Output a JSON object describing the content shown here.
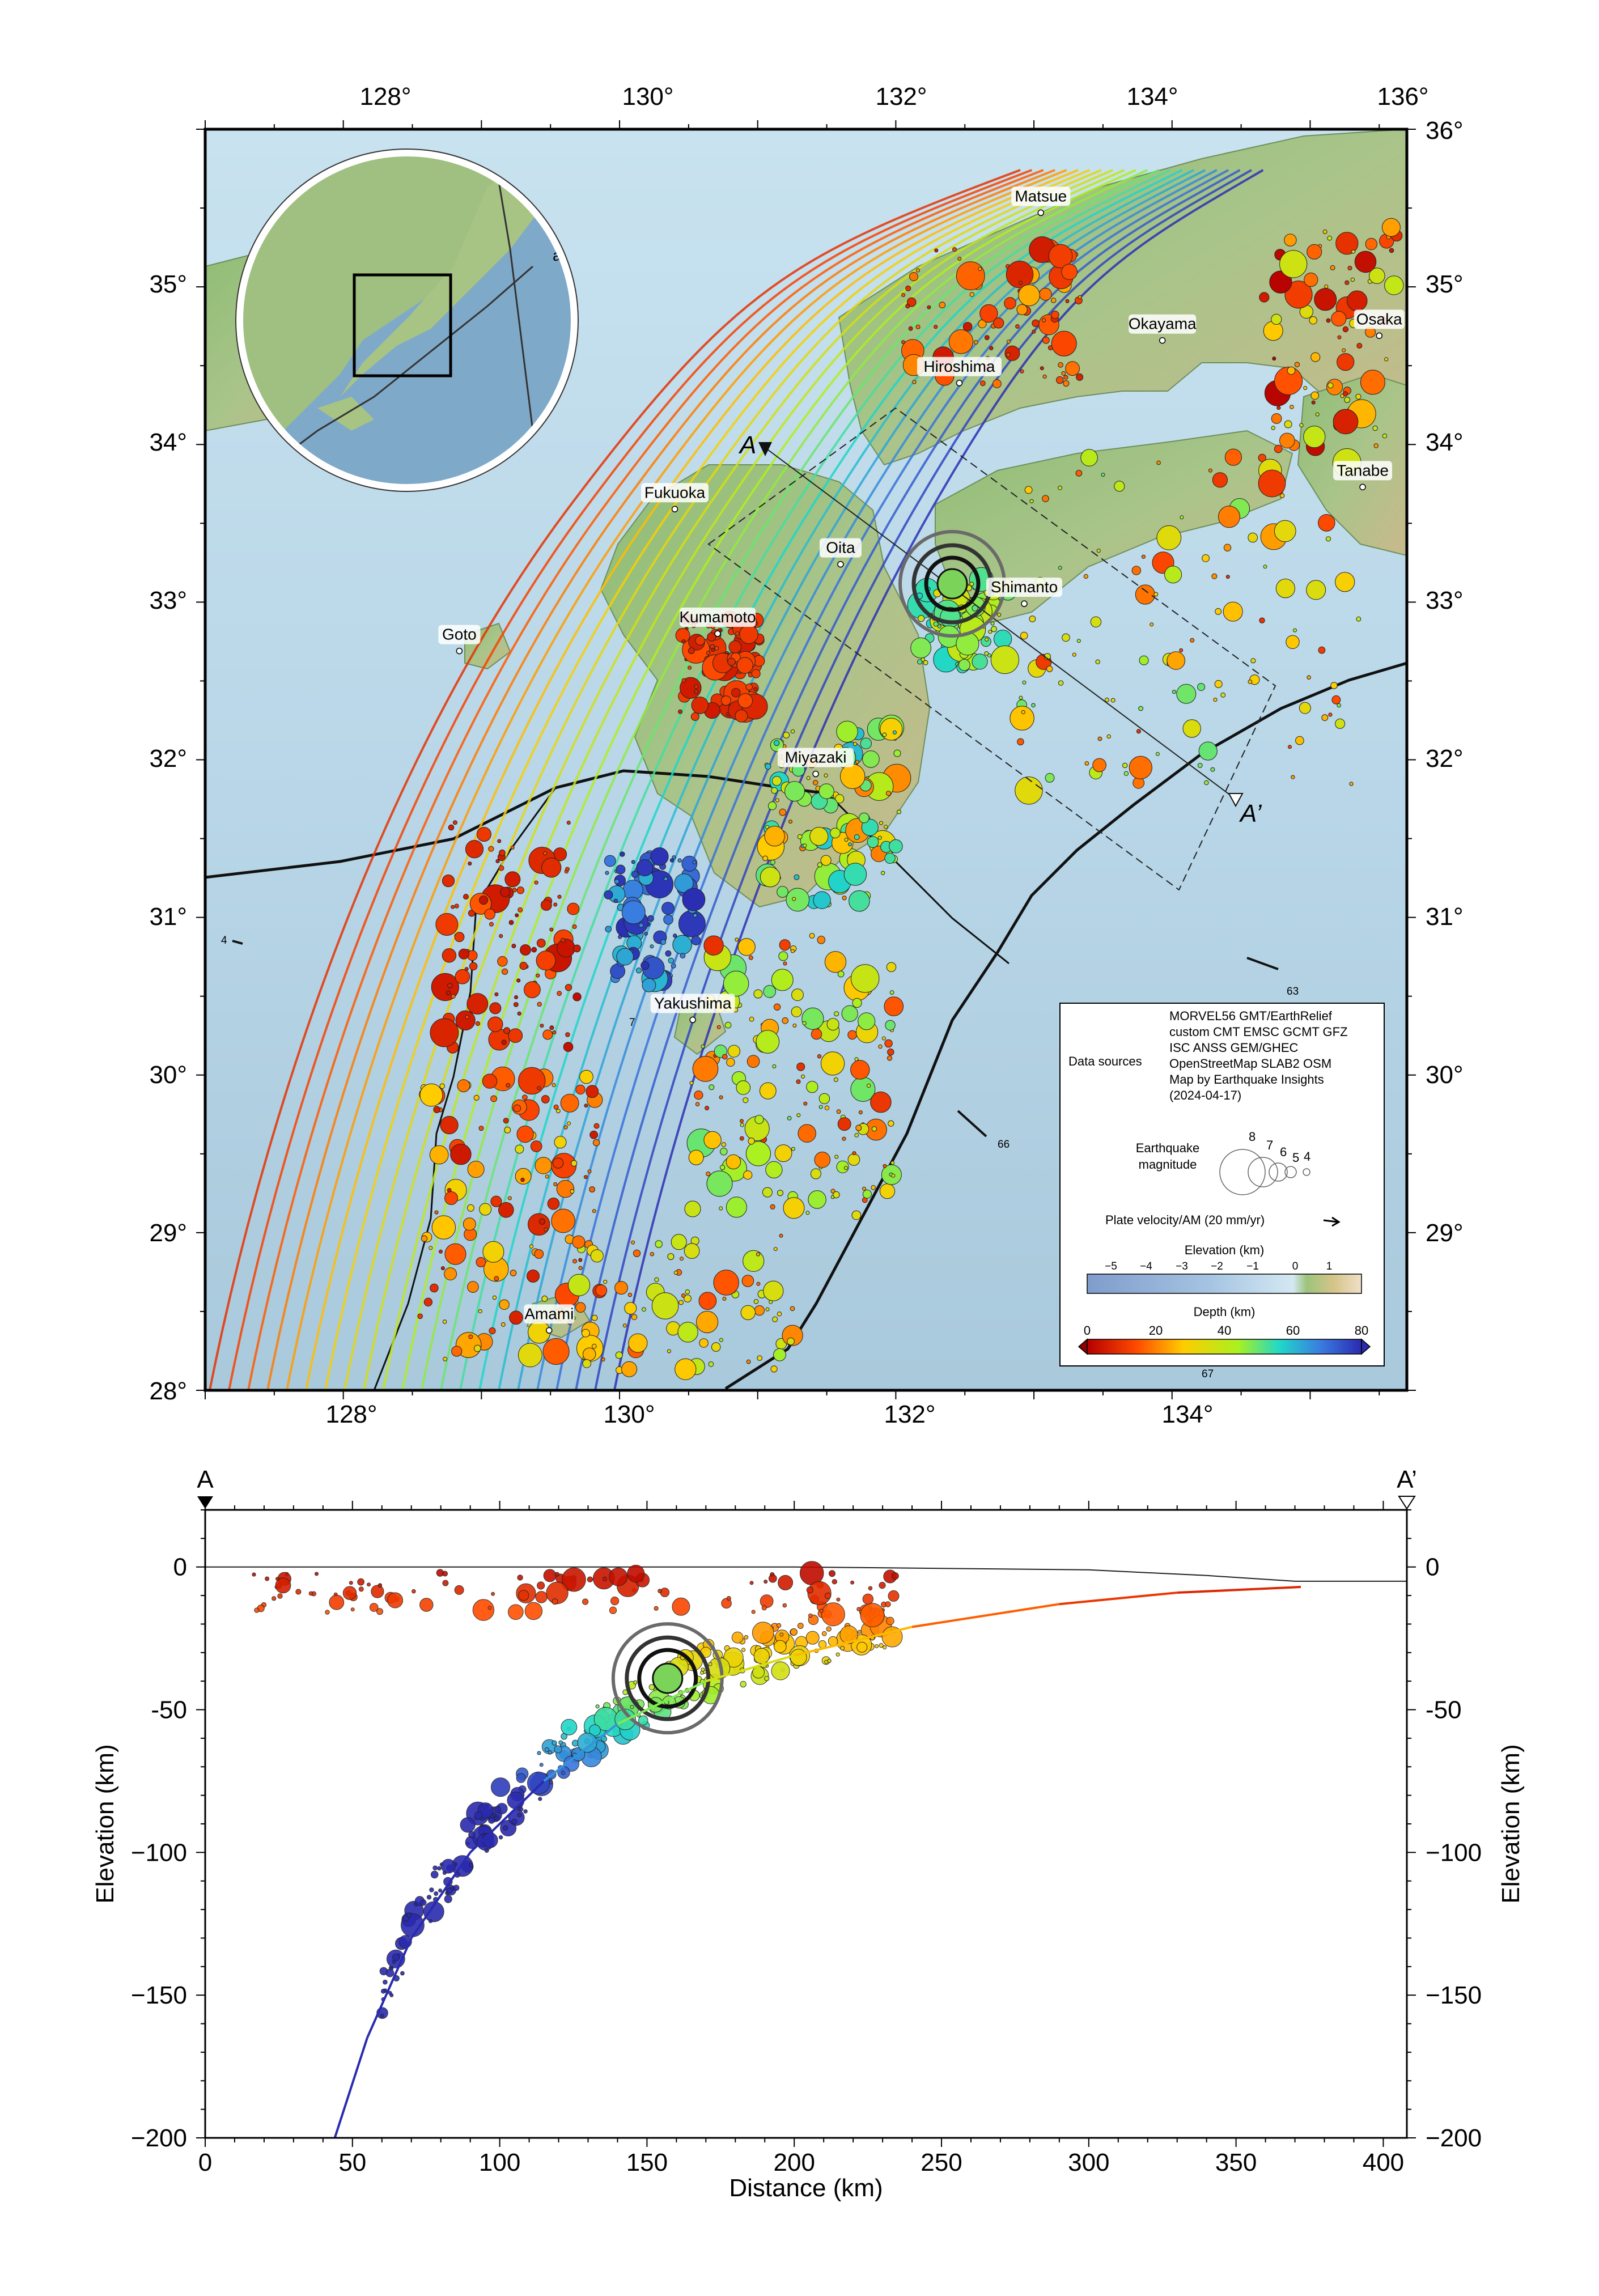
{
  "map": {
    "lon_ticks": [
      "128°",
      "130°",
      "132°",
      "134°",
      "136°"
    ],
    "lat_ticks": [
      "36°",
      "35°",
      "34°",
      "33°",
      "32°",
      "31°",
      "30°",
      "29°",
      "28°"
    ],
    "extent": {
      "lon": [
        127.0,
        135.7
      ],
      "lat": [
        28.0,
        36.0
      ]
    },
    "cities": [
      {
        "name": "Matsue",
        "lon": 133.05,
        "lat": 35.47
      },
      {
        "name": "Osaka",
        "lon": 135.5,
        "lat": 34.69
      },
      {
        "name": "Okayama",
        "lon": 133.93,
        "lat": 34.66
      },
      {
        "name": "Hiroshima",
        "lon": 132.46,
        "lat": 34.39
      },
      {
        "name": "Tanabe",
        "lon": 135.38,
        "lat": 33.73
      },
      {
        "name": "Fukuoka",
        "lon": 130.4,
        "lat": 33.59
      },
      {
        "name": "Oita",
        "lon": 131.6,
        "lat": 33.24
      },
      {
        "name": "Shimanto",
        "lon": 132.93,
        "lat": 32.99
      },
      {
        "name": "Kumamoto",
        "lon": 130.71,
        "lat": 32.8
      },
      {
        "name": "Goto",
        "lon": 128.84,
        "lat": 32.69
      },
      {
        "name": "Miyazaki",
        "lon": 131.42,
        "lat": 31.91
      },
      {
        "name": "Yakushima",
        "lon": 130.53,
        "lat": 30.35
      },
      {
        "name": "Amami",
        "lon": 129.49,
        "lat": 28.38
      }
    ],
    "profile_labels": {
      "start": "A",
      "end": "A’"
    },
    "plate_vectors": [
      "4",
      "7",
      "63",
      "66",
      "67"
    ],
    "inset_labels": [
      "C",
      "an"
    ],
    "mainshock": {
      "lon": 132.35,
      "lat": 33.15
    }
  },
  "legend": {
    "data_sources_label": "Data sources",
    "sources": [
      "MORVEL56 GMT/EarthRelief",
      "custom CMT EMSC GCMT GFZ",
      "ISC ANSS GEM/GHEC",
      "OpenStreetMap SLAB2 OSM",
      "Map by Earthquake Insights",
      "(2024-04-17)"
    ],
    "magnitude_label_1": "Earthquake",
    "magnitude_label_2": "magnitude",
    "magnitudes": [
      "8",
      "7",
      "6",
      "5",
      "4"
    ],
    "velocity_label": "Plate velocity/AM (20 mm/yr)",
    "elevation_title": "Elevation (km)",
    "elevation_ticks": [
      "−5",
      "−4",
      "−3",
      "−2",
      "−1",
      "0",
      "1"
    ],
    "depth_title": "Depth (km)",
    "depth_ticks": [
      "0",
      "20",
      "40",
      "60",
      "80"
    ]
  },
  "chart_data": {
    "type": "scatter",
    "xlabel": "Distance (km)",
    "ylabel": "Elevation (km)",
    "xlim": [
      0,
      408
    ],
    "ylim": [
      -200,
      20
    ],
    "x_ticks": [
      "0",
      "50",
      "100",
      "150",
      "200",
      "250",
      "300",
      "350",
      "400"
    ],
    "y_ticks": [
      "0",
      "-50",
      "−100",
      "−150",
      "−200"
    ],
    "y_ticks_right": [
      "0",
      "-50",
      "−100",
      "−150",
      "−200"
    ],
    "start_label": "A",
    "end_label": "A’",
    "mainshock": {
      "x": 157,
      "y": -39
    },
    "slab_curve": [
      [
        44,
        -200
      ],
      [
        55,
        -165
      ],
      [
        70,
        -130
      ],
      [
        90,
        -100
      ],
      [
        115,
        -75
      ],
      [
        140,
        -55
      ],
      [
        170,
        -40
      ],
      [
        200,
        -31
      ],
      [
        240,
        -21
      ],
      [
        290,
        -13
      ],
      [
        330,
        -9
      ],
      [
        372,
        -7
      ]
    ],
    "topography": [
      [
        0,
        0
      ],
      [
        200,
        0
      ],
      [
        250,
        -0.5
      ],
      [
        300,
        -1
      ],
      [
        340,
        -3
      ],
      [
        370,
        -5
      ],
      [
        408,
        -5
      ]
    ]
  }
}
